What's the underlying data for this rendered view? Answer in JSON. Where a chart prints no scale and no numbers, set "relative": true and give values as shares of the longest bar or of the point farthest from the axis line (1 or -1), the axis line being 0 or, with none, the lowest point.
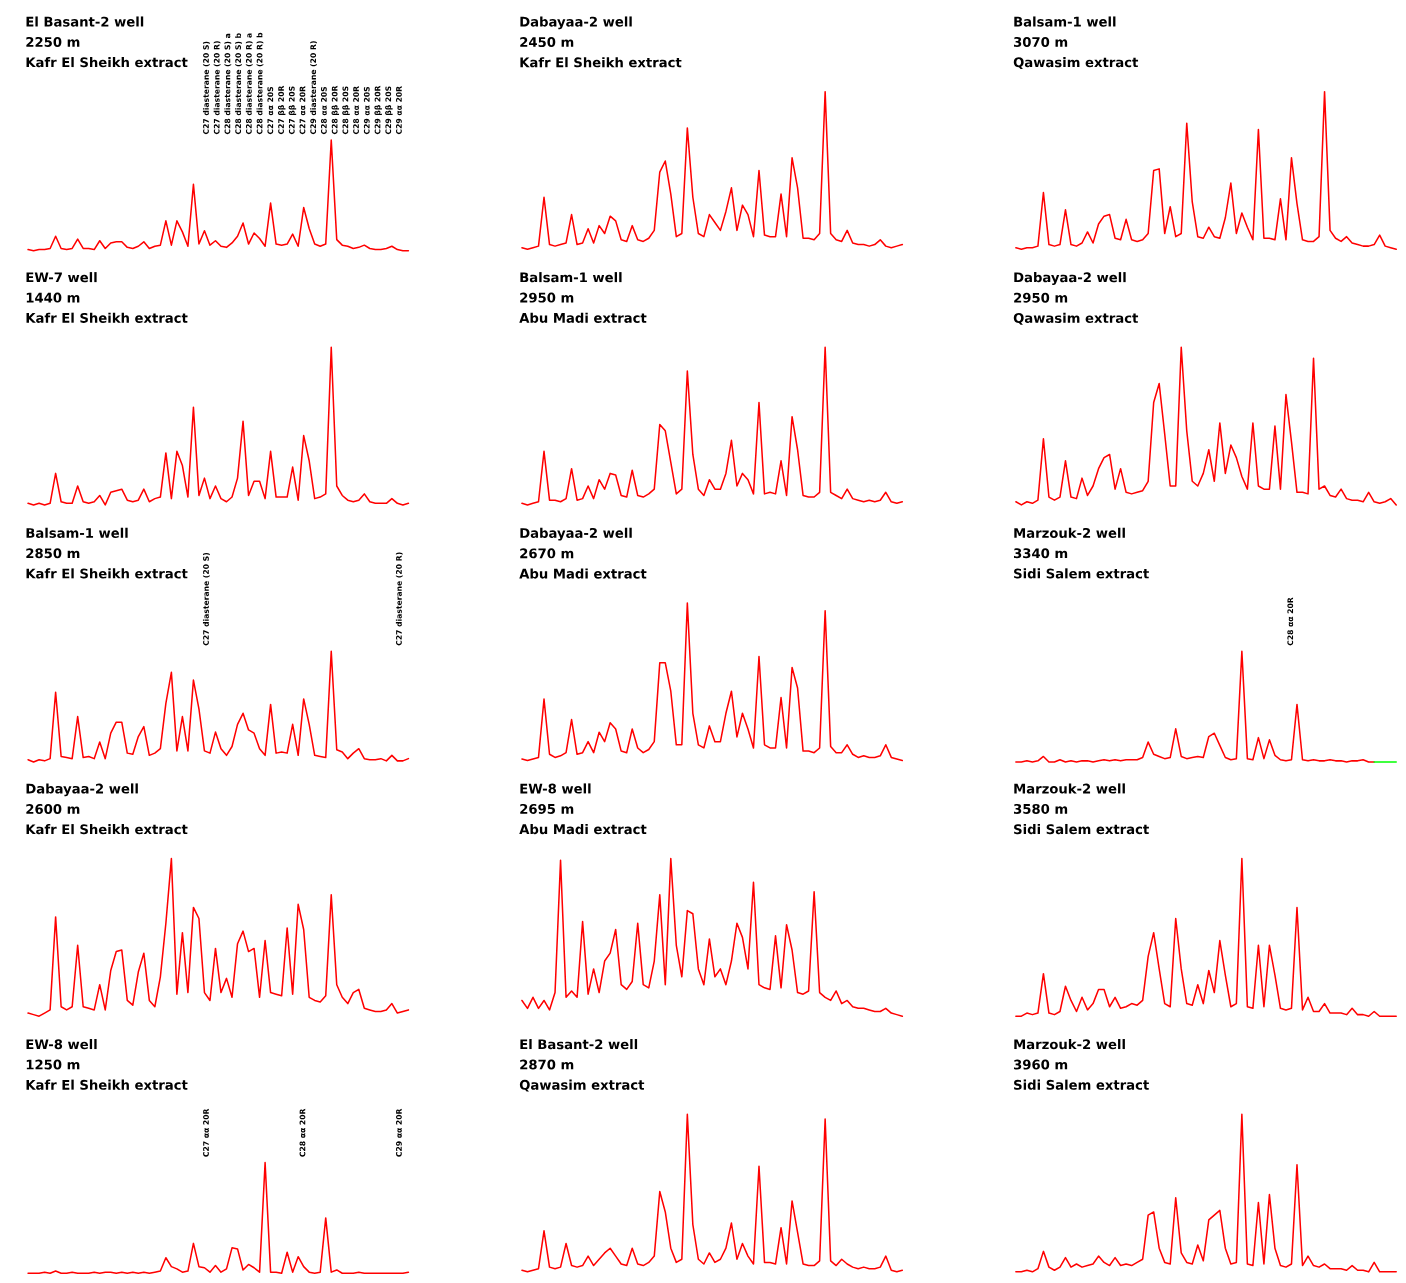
{
  "chart_data": [
    {
      "type": "line",
      "relative": true,
      "title": "El Basant-2 well\n2250 m\nKafr El Sheikh extract",
      "categories": [
        null,
        null,
        null,
        null,
        null,
        null,
        null,
        null,
        null,
        null,
        null,
        null,
        null,
        null,
        null,
        null,
        null,
        null,
        null,
        null,
        null,
        null,
        null,
        null,
        null,
        null,
        null,
        null,
        null,
        null,
        null,
        null,
        null,
        null,
        null,
        null,
        null,
        null,
        null,
        null,
        null,
        null,
        null,
        null,
        null,
        null,
        null,
        null,
        null,
        null,
        null,
        null,
        null,
        null,
        null,
        null,
        null,
        null,
        null,
        null,
        null,
        null,
        null,
        null,
        null,
        null,
        null,
        null,
        null,
        null
      ],
      "series": [
        {
          "color": "#ff0000",
          "values": [
            0.01,
            0.0,
            0.01,
            0.01,
            0.02,
            0.13,
            0.02,
            0.01,
            0.02,
            0.105,
            0.02,
            0.02,
            0.01,
            0.09,
            0.02,
            0.07,
            0.08,
            0.08,
            0.03,
            0.02,
            0.04,
            0.08,
            0.02,
            0.04,
            0.05,
            0.27,
            0.05,
            0.27,
            0.17,
            0.04,
            0.6,
            0.06,
            0.18,
            0.05,
            0.09,
            0.04,
            0.03,
            0.07,
            0.13,
            0.25,
            0.06,
            0.16,
            0.11,
            0.04,
            0.43,
            0.06,
            0.05,
            0.06,
            0.15,
            0.04,
            0.39,
            0.2,
            0.06,
            0.04,
            0.06,
            1.0,
            0.1,
            0.05,
            0.04,
            0.02,
            0.03,
            0.05,
            0.02,
            0.01,
            0.01,
            0.02,
            0.04,
            0.01,
            0.0,
            0.0
          ]
        }
      ],
      "annotations": [
        "C27 diasterane (20 S)",
        "C27 diasterane (20 R)",
        "C28 diasterane (20 S) a",
        "C28 diasterane (20 S) b",
        "C28 diasterane (20 R) a",
        "C28 diasterane (20 R) b",
        "C27 αα 20S",
        "C27 ββ 20R",
        "C27 ββ 20S",
        "C27 αα 20R",
        "C29 diasterane (20 R)",
        "C28 αα 20S",
        "C28 ββ 20R",
        "C28 ββ 20S",
        "C28 αα 20R",
        "C29 αα 20S",
        "C29 ββ 20R",
        "C29 ββ 20S",
        "C29 αα 20R"
      ]
    },
    {
      "type": "line",
      "relative": true,
      "title": "Dabayaa-2 well\n2450 m\nKafr El Sheikh extract",
      "categories": [
        null,
        null,
        null,
        null,
        null,
        null,
        null,
        null,
        null,
        null,
        null,
        null,
        null,
        null,
        null,
        null,
        null,
        null,
        null,
        null,
        null,
        null,
        null,
        null,
        null,
        null,
        null,
        null,
        null,
        null,
        null,
        null,
        null,
        null,
        null,
        null,
        null,
        null,
        null,
        null,
        null,
        null,
        null,
        null,
        null,
        null,
        null,
        null,
        null,
        null,
        null,
        null,
        null,
        null,
        null,
        null,
        null,
        null,
        null,
        null,
        null,
        null,
        null,
        null,
        null,
        null,
        null,
        null,
        null,
        null
      ],
      "series": [
        {
          "color": "#ff0000",
          "values": [
            0.01,
            0.0,
            0.01,
            0.02,
            0.33,
            0.03,
            0.02,
            0.03,
            0.04,
            0.22,
            0.03,
            0.04,
            0.13,
            0.04,
            0.15,
            0.1,
            0.21,
            0.18,
            0.06,
            0.05,
            0.15,
            0.06,
            0.05,
            0.07,
            0.12,
            0.49,
            0.56,
            0.35,
            0.08,
            0.1,
            0.77,
            0.33,
            0.1,
            0.08,
            0.22,
            0.17,
            0.12,
            0.24,
            0.39,
            0.12,
            0.28,
            0.22,
            0.08,
            0.5,
            0.09,
            0.08,
            0.08,
            0.35,
            0.08,
            0.58,
            0.39,
            0.07,
            0.07,
            0.06,
            0.1,
            1.0,
            0.1,
            0.06,
            0.05,
            0.12,
            0.04,
            0.03,
            0.03,
            0.02,
            0.03,
            0.06,
            0.02,
            0.01,
            0.02,
            0.03
          ]
        }
      ]
    },
    {
      "type": "line",
      "relative": true,
      "title": "Balsam-1 well\n3070 m\nQawasim extract",
      "categories": [
        null,
        null,
        null,
        null,
        null,
        null,
        null,
        null,
        null,
        null,
        null,
        null,
        null,
        null,
        null,
        null,
        null,
        null,
        null,
        null,
        null,
        null,
        null,
        null,
        null,
        null,
        null,
        null,
        null,
        null,
        null,
        null,
        null,
        null,
        null,
        null,
        null,
        null,
        null,
        null,
        null,
        null,
        null,
        null,
        null,
        null,
        null,
        null,
        null,
        null,
        null,
        null,
        null,
        null,
        null,
        null,
        null,
        null,
        null,
        null,
        null,
        null,
        null,
        null,
        null,
        null,
        null,
        null,
        null,
        null
      ],
      "series": [
        {
          "color": "#ff0000",
          "values": [
            0.01,
            0.0,
            0.01,
            0.01,
            0.02,
            0.36,
            0.03,
            0.02,
            0.03,
            0.25,
            0.03,
            0.02,
            0.04,
            0.11,
            0.04,
            0.16,
            0.21,
            0.22,
            0.07,
            0.06,
            0.19,
            0.06,
            0.05,
            0.06,
            0.1,
            0.5,
            0.51,
            0.1,
            0.27,
            0.08,
            0.1,
            0.8,
            0.3,
            0.08,
            0.07,
            0.14,
            0.08,
            0.07,
            0.2,
            0.42,
            0.1,
            0.23,
            0.14,
            0.06,
            0.76,
            0.07,
            0.07,
            0.06,
            0.32,
            0.06,
            0.58,
            0.29,
            0.06,
            0.05,
            0.05,
            0.08,
            1.0,
            0.12,
            0.07,
            0.05,
            0.08,
            0.04,
            0.03,
            0.02,
            0.02,
            0.03,
            0.09,
            0.02,
            0.01,
            0.0
          ]
        }
      ]
    },
    {
      "type": "line",
      "relative": true,
      "title": "EW-7 well\n1440 m\nKafr El Sheikh extract",
      "categories": [
        null,
        null,
        null,
        null,
        null,
        null,
        null,
        null,
        null,
        null,
        null,
        null,
        null,
        null,
        null,
        null,
        null,
        null,
        null,
        null,
        null,
        null,
        null,
        null,
        null,
        null,
        null,
        null,
        null,
        null,
        null,
        null,
        null,
        null,
        null,
        null,
        null,
        null,
        null,
        null,
        null,
        null,
        null,
        null,
        null,
        null,
        null,
        null,
        null,
        null,
        null,
        null,
        null,
        null,
        null,
        null,
        null,
        null,
        null,
        null,
        null,
        null,
        null,
        null,
        null,
        null,
        null,
        null,
        null,
        null
      ],
      "series": [
        {
          "color": "#ff0000",
          "values": [
            0.01,
            0.0,
            0.01,
            0.0,
            0.01,
            0.2,
            0.02,
            0.01,
            0.01,
            0.12,
            0.02,
            0.01,
            0.02,
            0.06,
            0.0,
            0.08,
            0.09,
            0.1,
            0.03,
            0.02,
            0.03,
            0.1,
            0.02,
            0.04,
            0.05,
            0.33,
            0.04,
            0.34,
            0.25,
            0.05,
            0.62,
            0.06,
            0.17,
            0.04,
            0.12,
            0.04,
            0.02,
            0.05,
            0.17,
            0.53,
            0.06,
            0.15,
            0.15,
            0.04,
            0.34,
            0.05,
            0.05,
            0.05,
            0.24,
            0.03,
            0.44,
            0.28,
            0.04,
            0.05,
            0.07,
            1.0,
            0.12,
            0.06,
            0.03,
            0.02,
            0.03,
            0.07,
            0.02,
            0.01,
            0.01,
            0.01,
            0.04,
            0.01,
            0.0,
            0.01
          ]
        }
      ]
    },
    {
      "type": "line",
      "relative": true,
      "title": "Balsam-1 well\n2950 m\nAbu Madi extract",
      "categories": [
        null,
        null,
        null,
        null,
        null,
        null,
        null,
        null,
        null,
        null,
        null,
        null,
        null,
        null,
        null,
        null,
        null,
        null,
        null,
        null,
        null,
        null,
        null,
        null,
        null,
        null,
        null,
        null,
        null,
        null,
        null,
        null,
        null,
        null,
        null,
        null,
        null,
        null,
        null,
        null,
        null,
        null,
        null,
        null,
        null,
        null,
        null,
        null,
        null,
        null,
        null,
        null,
        null,
        null,
        null,
        null,
        null,
        null,
        null,
        null,
        null,
        null,
        null,
        null,
        null,
        null,
        null,
        null,
        null,
        null
      ],
      "series": [
        {
          "color": "#ff0000",
          "values": [
            0.01,
            0.0,
            0.01,
            0.02,
            0.34,
            0.03,
            0.03,
            0.02,
            0.04,
            0.23,
            0.03,
            0.04,
            0.12,
            0.04,
            0.16,
            0.1,
            0.2,
            0.19,
            0.06,
            0.05,
            0.22,
            0.06,
            0.05,
            0.07,
            0.1,
            0.51,
            0.47,
            0.27,
            0.07,
            0.1,
            0.85,
            0.32,
            0.1,
            0.06,
            0.16,
            0.1,
            0.1,
            0.2,
            0.41,
            0.12,
            0.2,
            0.16,
            0.07,
            0.65,
            0.07,
            0.08,
            0.07,
            0.28,
            0.06,
            0.56,
            0.35,
            0.06,
            0.05,
            0.05,
            0.08,
            1.0,
            0.08,
            0.06,
            0.04,
            0.1,
            0.04,
            0.03,
            0.02,
            0.03,
            0.02,
            0.03,
            0.08,
            0.02,
            0.01,
            0.02
          ]
        }
      ]
    },
    {
      "type": "line",
      "relative": true,
      "title": "Dabayaa-2 well\n2950 m\nQawasim extract",
      "categories": [
        null,
        null,
        null,
        null,
        null,
        null,
        null,
        null,
        null,
        null,
        null,
        null,
        null,
        null,
        null,
        null,
        null,
        null,
        null,
        null,
        null,
        null,
        null,
        null,
        null,
        null,
        null,
        null,
        null,
        null,
        null,
        null,
        null,
        null,
        null,
        null,
        null,
        null,
        null,
        null,
        null,
        null,
        null,
        null,
        null,
        null,
        null,
        null,
        null,
        null,
        null,
        null,
        null,
        null,
        null,
        null,
        null,
        null,
        null,
        null,
        null,
        null,
        null,
        null,
        null,
        null,
        null,
        null,
        null,
        null
      ],
      "series": [
        {
          "color": "#ff0000",
          "values": [
            0.02,
            0.0,
            0.02,
            0.01,
            0.03,
            0.42,
            0.05,
            0.03,
            0.05,
            0.28,
            0.05,
            0.04,
            0.17,
            0.06,
            0.12,
            0.23,
            0.3,
            0.32,
            0.1,
            0.23,
            0.08,
            0.07,
            0.08,
            0.09,
            0.15,
            0.65,
            0.77,
            0.45,
            0.12,
            0.12,
            1.0,
            0.47,
            0.15,
            0.12,
            0.2,
            0.35,
            0.15,
            0.52,
            0.2,
            0.38,
            0.3,
            0.18,
            0.1,
            0.52,
            0.12,
            0.1,
            0.1,
            0.5,
            0.1,
            0.7,
            0.4,
            0.08,
            0.08,
            0.07,
            0.93,
            0.1,
            0.12,
            0.06,
            0.05,
            0.1,
            0.04,
            0.03,
            0.03,
            0.02,
            0.08,
            0.02,
            0.01,
            0.02,
            0.04,
            0.0
          ]
        }
      ]
    },
    {
      "type": "line",
      "relative": true,
      "title": "Balsam-1 well\n2850 m\nKafr El Sheikh extract",
      "categories": [
        null,
        null,
        null,
        null,
        null,
        null,
        null,
        null,
        null,
        null,
        null,
        null,
        null,
        null,
        null,
        null,
        null,
        null,
        null,
        null,
        null,
        null,
        null,
        null,
        null,
        null,
        null,
        null,
        null,
        null,
        null,
        null,
        null,
        null,
        null,
        null,
        null,
        null,
        null,
        null,
        null,
        null,
        null,
        null,
        null,
        null,
        null,
        null,
        null,
        null,
        null,
        null,
        null,
        null,
        null,
        null,
        null,
        null,
        null,
        null,
        null,
        null,
        null,
        null,
        null,
        null,
        null,
        null,
        null,
        null
      ],
      "series": [
        {
          "color": "#ff0000",
          "values": [
            0.02,
            0.0,
            0.02,
            0.01,
            0.03,
            0.63,
            0.05,
            0.04,
            0.03,
            0.41,
            0.04,
            0.05,
            0.03,
            0.18,
            0.03,
            0.26,
            0.36,
            0.36,
            0.08,
            0.07,
            0.23,
            0.32,
            0.06,
            0.08,
            0.12,
            0.53,
            0.81,
            0.1,
            0.41,
            0.1,
            0.74,
            0.48,
            0.1,
            0.08,
            0.27,
            0.12,
            0.06,
            0.14,
            0.34,
            0.44,
            0.29,
            0.26,
            0.12,
            0.06,
            0.52,
            0.08,
            0.09,
            0.08,
            0.34,
            0.06,
            0.57,
            0.34,
            0.06,
            0.05,
            0.04,
            1.0,
            0.11,
            0.09,
            0.03,
            0.08,
            0.12,
            0.03,
            0.02,
            0.02,
            0.03,
            0.01,
            0.06,
            0.01,
            0.01,
            0.03
          ]
        }
      ],
      "annotations": [
        "C27 diasterane (20 S)",
        "C27 diasterane (20 R)"
      ]
    },
    {
      "type": "line",
      "relative": true,
      "title": "Dabayaa-2 well\n2670 m\nAbu Madi extract",
      "categories": [
        null,
        null,
        null,
        null,
        null,
        null,
        null,
        null,
        null,
        null,
        null,
        null,
        null,
        null,
        null,
        null,
        null,
        null,
        null,
        null,
        null,
        null,
        null,
        null,
        null,
        null,
        null,
        null,
        null,
        null,
        null,
        null,
        null,
        null,
        null,
        null,
        null,
        null,
        null,
        null,
        null,
        null,
        null,
        null,
        null,
        null,
        null,
        null,
        null,
        null,
        null,
        null,
        null,
        null,
        null,
        null,
        null,
        null,
        null,
        null,
        null,
        null,
        null,
        null,
        null,
        null,
        null,
        null,
        null,
        null
      ],
      "series": [
        {
          "color": "#ff0000",
          "values": [
            0.01,
            0.0,
            0.01,
            0.02,
            0.39,
            0.04,
            0.02,
            0.03,
            0.05,
            0.26,
            0.04,
            0.05,
            0.12,
            0.05,
            0.18,
            0.12,
            0.24,
            0.2,
            0.06,
            0.05,
            0.2,
            0.08,
            0.05,
            0.07,
            0.12,
            0.62,
            0.62,
            0.44,
            0.1,
            0.1,
            1.0,
            0.3,
            0.1,
            0.08,
            0.22,
            0.12,
            0.12,
            0.3,
            0.44,
            0.15,
            0.3,
            0.2,
            0.08,
            0.66,
            0.1,
            0.08,
            0.08,
            0.4,
            0.08,
            0.59,
            0.46,
            0.06,
            0.06,
            0.05,
            0.08,
            0.95,
            0.09,
            0.05,
            0.05,
            0.1,
            0.04,
            0.02,
            0.03,
            0.02,
            0.02,
            0.03,
            0.1,
            0.02,
            0.01,
            0.0
          ]
        }
      ]
    },
    {
      "type": "line",
      "relative": true,
      "title": "Marzouk-2 well\n3340 m\nSidi Salem extract",
      "categories": [
        null,
        null,
        null,
        null,
        null,
        null,
        null,
        null,
        null,
        null,
        null,
        null,
        null,
        null,
        null,
        null,
        null,
        null,
        null,
        null,
        null,
        null,
        null,
        null,
        null,
        null,
        null,
        null,
        null,
        null,
        null,
        null,
        null,
        null,
        null,
        null,
        null,
        null,
        null,
        null,
        null,
        null,
        null,
        null,
        null,
        null,
        null,
        null,
        null,
        null,
        null,
        null,
        null,
        null,
        null,
        null,
        null,
        null,
        null,
        null,
        null,
        null,
        null,
        null,
        null,
        null,
        null,
        null,
        null,
        null
      ],
      "series": [
        {
          "color": "#ff0000",
          "values": [
            0.0,
            0.0,
            0.01,
            0.0,
            0.01,
            0.05,
            0.0,
            0.0,
            0.02,
            0.0,
            0.01,
            0.0,
            0.01,
            0.01,
            0.0,
            0.01,
            0.02,
            0.01,
            0.02,
            0.01,
            0.02,
            0.02,
            0.02,
            0.04,
            0.18,
            0.07,
            0.05,
            0.03,
            0.04,
            0.3,
            0.05,
            0.03,
            0.04,
            0.05,
            0.04,
            0.23,
            0.26,
            0.15,
            0.04,
            0.02,
            0.03,
            1.0,
            0.03,
            0.02,
            0.22,
            0.03,
            0.2,
            0.06,
            0.02,
            0.01,
            0.02,
            0.52,
            0.02,
            0.01,
            0.02,
            0.01,
            0.01,
            0.02,
            0.01,
            0.01,
            0.0,
            0.01,
            0.01,
            0.02,
            0.0,
            0.0,
            null,
            null,
            null,
            null
          ]
        },
        {
          "color": "#00ff00",
          "values": [
            null,
            null,
            null,
            null,
            null,
            null,
            null,
            null,
            null,
            null,
            null,
            null,
            null,
            null,
            null,
            null,
            null,
            null,
            null,
            null,
            null,
            null,
            null,
            null,
            null,
            null,
            null,
            null,
            null,
            null,
            null,
            null,
            null,
            null,
            null,
            null,
            null,
            null,
            null,
            null,
            null,
            null,
            null,
            null,
            null,
            null,
            null,
            null,
            null,
            null,
            null,
            null,
            null,
            null,
            null,
            null,
            null,
            null,
            null,
            null,
            null,
            null,
            null,
            null,
            null,
            0.0,
            0.0,
            0.0,
            0.0,
            0.0
          ]
        }
      ],
      "annotations": [
        "C28 αα 20R"
      ]
    },
    {
      "type": "line",
      "relative": true,
      "title": "Dabayaa-2 well\n2600 m\nKafr El Sheikh extract",
      "categories": [
        null,
        null,
        null,
        null,
        null,
        null,
        null,
        null,
        null,
        null,
        null,
        null,
        null,
        null,
        null,
        null,
        null,
        null,
        null,
        null,
        null,
        null,
        null,
        null,
        null,
        null,
        null,
        null,
        null,
        null,
        null,
        null,
        null,
        null,
        null,
        null,
        null,
        null,
        null,
        null,
        null,
        null,
        null,
        null,
        null,
        null,
        null,
        null,
        null,
        null,
        null,
        null,
        null,
        null,
        null,
        null,
        null,
        null,
        null,
        null,
        null,
        null,
        null,
        null,
        null,
        null,
        null,
        null,
        null,
        null
      ],
      "series": [
        {
          "color": "#ff0000",
          "values": [
            0.02,
            0.01,
            0.0,
            0.02,
            0.04,
            0.63,
            0.06,
            0.04,
            0.06,
            0.45,
            0.06,
            0.05,
            0.04,
            0.2,
            0.04,
            0.29,
            0.41,
            0.42,
            0.1,
            0.07,
            0.28,
            0.4,
            0.1,
            0.06,
            0.25,
            0.59,
            1.0,
            0.14,
            0.53,
            0.15,
            0.69,
            0.62,
            0.15,
            0.1,
            0.43,
            0.15,
            0.24,
            0.12,
            0.46,
            0.54,
            0.41,
            0.43,
            0.12,
            0.48,
            0.15,
            0.14,
            0.13,
            0.56,
            0.14,
            0.71,
            0.55,
            0.12,
            0.1,
            0.09,
            0.13,
            0.77,
            0.2,
            0.12,
            0.08,
            0.15,
            0.17,
            0.05,
            0.04,
            0.03,
            0.03,
            0.04,
            0.08,
            0.02,
            0.03,
            0.04
          ]
        }
      ]
    },
    {
      "type": "line",
      "relative": true,
      "title": "EW-8 well\n2695 m\nAbu Madi extract",
      "categories": [
        null,
        null,
        null,
        null,
        null,
        null,
        null,
        null,
        null,
        null,
        null,
        null,
        null,
        null,
        null,
        null,
        null,
        null,
        null,
        null,
        null,
        null,
        null,
        null,
        null,
        null,
        null,
        null,
        null,
        null,
        null,
        null,
        null,
        null,
        null,
        null,
        null,
        null,
        null,
        null,
        null,
        null,
        null,
        null,
        null,
        null,
        null,
        null,
        null,
        null,
        null,
        null,
        null,
        null,
        null,
        null,
        null,
        null,
        null,
        null,
        null,
        null,
        null,
        null,
        null,
        null,
        null,
        null,
        null,
        null
      ],
      "series": [
        {
          "color": "#ff0000",
          "values": [
            0.1,
            0.05,
            0.12,
            0.05,
            0.1,
            0.04,
            0.15,
            0.99,
            0.12,
            0.16,
            0.12,
            0.6,
            0.14,
            0.3,
            0.15,
            0.35,
            0.4,
            0.55,
            0.2,
            0.17,
            0.22,
            0.59,
            0.2,
            0.18,
            0.35,
            0.77,
            0.2,
            1.0,
            0.45,
            0.25,
            0.67,
            0.65,
            0.3,
            0.2,
            0.49,
            0.25,
            0.3,
            0.2,
            0.35,
            0.59,
            0.5,
            0.3,
            0.85,
            0.2,
            0.18,
            0.17,
            0.51,
            0.18,
            0.58,
            0.42,
            0.15,
            0.14,
            0.16,
            0.79,
            0.15,
            0.12,
            0.1,
            0.16,
            0.08,
            0.1,
            0.06,
            0.05,
            0.05,
            0.04,
            0.03,
            0.03,
            0.05,
            0.02,
            0.01,
            0.0
          ]
        }
      ]
    },
    {
      "type": "line",
      "relative": true,
      "title": "Marzouk-2 well\n3580 m\nSidi Salem extract",
      "categories": [
        null,
        null,
        null,
        null,
        null,
        null,
        null,
        null,
        null,
        null,
        null,
        null,
        null,
        null,
        null,
        null,
        null,
        null,
        null,
        null,
        null,
        null,
        null,
        null,
        null,
        null,
        null,
        null,
        null,
        null,
        null,
        null,
        null,
        null,
        null,
        null,
        null,
        null,
        null,
        null,
        null,
        null,
        null,
        null,
        null,
        null,
        null,
        null,
        null,
        null,
        null,
        null,
        null,
        null,
        null,
        null,
        null,
        null,
        null,
        null,
        null,
        null,
        null,
        null,
        null,
        null,
        null,
        null,
        null,
        null
      ],
      "series": [
        {
          "color": "#ff0000",
          "values": [
            0.0,
            0.0,
            0.02,
            0.01,
            0.02,
            0.27,
            0.02,
            0.01,
            0.03,
            0.19,
            0.1,
            0.03,
            0.12,
            0.04,
            0.08,
            0.17,
            0.17,
            0.06,
            0.12,
            0.05,
            0.06,
            0.08,
            0.07,
            0.1,
            0.38,
            0.53,
            0.3,
            0.08,
            0.06,
            0.62,
            0.3,
            0.08,
            0.07,
            0.2,
            0.08,
            0.29,
            0.15,
            0.48,
            0.26,
            0.06,
            0.08,
            1.0,
            0.06,
            0.05,
            0.45,
            0.06,
            0.45,
            0.26,
            0.05,
            0.04,
            0.05,
            0.69,
            0.04,
            0.12,
            0.03,
            0.03,
            0.08,
            0.02,
            0.02,
            0.02,
            0.01,
            0.05,
            0.01,
            0.01,
            0.0,
            0.03,
            0.0,
            0.0,
            0.0,
            0.0
          ]
        }
      ]
    },
    {
      "type": "line",
      "relative": true,
      "title": "EW-8 well\n1250 m\nKafr El Sheikh extract",
      "categories": [
        null,
        null,
        null,
        null,
        null,
        null,
        null,
        null,
        null,
        null,
        null,
        null,
        null,
        null,
        null,
        null,
        null,
        null,
        null,
        null,
        null,
        null,
        null,
        null,
        null,
        null,
        null,
        null,
        null,
        null,
        null,
        null,
        null,
        null,
        null,
        null,
        null,
        null,
        null,
        null,
        null,
        null,
        null,
        null,
        null,
        null,
        null,
        null,
        null,
        null,
        null,
        null,
        null,
        null,
        null,
        null,
        null,
        null,
        null,
        null,
        null,
        null,
        null,
        null,
        null,
        null,
        null,
        null,
        null,
        null
      ],
      "series": [
        {
          "color": "#ff0000",
          "values": [
            0.0,
            0.0,
            0.0,
            0.01,
            0.0,
            0.02,
            0.0,
            0.0,
            0.01,
            0.0,
            0.0,
            0.0,
            0.01,
            0.0,
            0.01,
            0.01,
            0.0,
            0.01,
            0.0,
            0.01,
            0.0,
            0.01,
            0.0,
            0.01,
            0.02,
            0.14,
            0.06,
            0.04,
            0.01,
            0.02,
            0.27,
            0.06,
            0.05,
            0.01,
            0.07,
            0.01,
            0.04,
            0.23,
            0.22,
            0.03,
            0.08,
            0.05,
            0.01,
            1.0,
            0.01,
            0.01,
            0.0,
            0.19,
            0.01,
            0.15,
            0.06,
            0.01,
            0.0,
            0.01,
            0.5,
            0.01,
            0.03,
            0.0,
            0.0,
            0.0,
            0.01,
            0.0,
            0.0,
            0.0,
            0.0,
            0.0,
            0.0,
            0.0,
            0.0,
            0.01
          ]
        }
      ],
      "annotations": [
        "C27 αα 20R",
        "C28 αα 20R",
        "C29 αα 20R"
      ]
    },
    {
      "type": "line",
      "relative": true,
      "title": "El Basant-2 well\n2870 m\nQawasim extract",
      "categories": [
        null,
        null,
        null,
        null,
        null,
        null,
        null,
        null,
        null,
        null,
        null,
        null,
        null,
        null,
        null,
        null,
        null,
        null,
        null,
        null,
        null,
        null,
        null,
        null,
        null,
        null,
        null,
        null,
        null,
        null,
        null,
        null,
        null,
        null,
        null,
        null,
        null,
        null,
        null,
        null,
        null,
        null,
        null,
        null,
        null,
        null,
        null,
        null,
        null,
        null,
        null,
        null,
        null,
        null,
        null,
        null,
        null,
        null,
        null,
        null,
        null,
        null,
        null,
        null,
        null,
        null,
        null,
        null,
        null,
        null
      ],
      "series": [
        {
          "color": "#ff0000",
          "values": [
            0.01,
            0.0,
            0.01,
            0.02,
            0.26,
            0.03,
            0.02,
            0.03,
            0.18,
            0.04,
            0.03,
            0.04,
            0.1,
            0.04,
            0.08,
            0.12,
            0.15,
            0.1,
            0.05,
            0.04,
            0.15,
            0.05,
            0.04,
            0.06,
            0.1,
            0.51,
            0.38,
            0.15,
            0.06,
            0.08,
            1.0,
            0.3,
            0.08,
            0.05,
            0.12,
            0.06,
            0.08,
            0.15,
            0.31,
            0.08,
            0.18,
            0.1,
            0.05,
            0.67,
            0.06,
            0.06,
            0.05,
            0.28,
            0.05,
            0.45,
            0.25,
            0.05,
            0.04,
            0.04,
            0.07,
            0.97,
            0.07,
            0.04,
            0.08,
            0.05,
            0.03,
            0.02,
            0.03,
            0.02,
            0.02,
            0.03,
            0.1,
            0.01,
            0.0,
            0.01
          ]
        }
      ]
    },
    {
      "type": "line",
      "relative": true,
      "title": "Marzouk-2 well\n3960 m\nSidi Salem extract",
      "categories": [
        null,
        null,
        null,
        null,
        null,
        null,
        null,
        null,
        null,
        null,
        null,
        null,
        null,
        null,
        null,
        null,
        null,
        null,
        null,
        null,
        null,
        null,
        null,
        null,
        null,
        null,
        null,
        null,
        null,
        null,
        null,
        null,
        null,
        null,
        null,
        null,
        null,
        null,
        null,
        null,
        null,
        null,
        null,
        null,
        null,
        null,
        null,
        null,
        null,
        null,
        null,
        null,
        null,
        null,
        null,
        null,
        null,
        null,
        null,
        null,
        null,
        null,
        null,
        null,
        null,
        null,
        null,
        null,
        null,
        null
      ],
      "series": [
        {
          "color": "#ff0000",
          "values": [
            0.0,
            0.0,
            0.01,
            0.0,
            0.02,
            0.13,
            0.03,
            0.01,
            0.03,
            0.09,
            0.03,
            0.05,
            0.03,
            0.04,
            0.05,
            0.1,
            0.06,
            0.04,
            0.09,
            0.04,
            0.05,
            0.04,
            0.06,
            0.08,
            0.36,
            0.38,
            0.15,
            0.06,
            0.05,
            0.47,
            0.12,
            0.06,
            0.05,
            0.17,
            0.07,
            0.33,
            0.36,
            0.39,
            0.15,
            0.05,
            0.06,
            1.0,
            0.05,
            0.04,
            0.44,
            0.05,
            0.49,
            0.15,
            0.04,
            0.03,
            0.05,
            0.68,
            0.04,
            0.1,
            0.04,
            0.03,
            0.05,
            0.02,
            0.02,
            0.02,
            0.01,
            0.04,
            0.01,
            0.01,
            0.0,
            0.06,
            0.0,
            0.0,
            0.0,
            0.0
          ]
        }
      ]
    }
  ]
}
